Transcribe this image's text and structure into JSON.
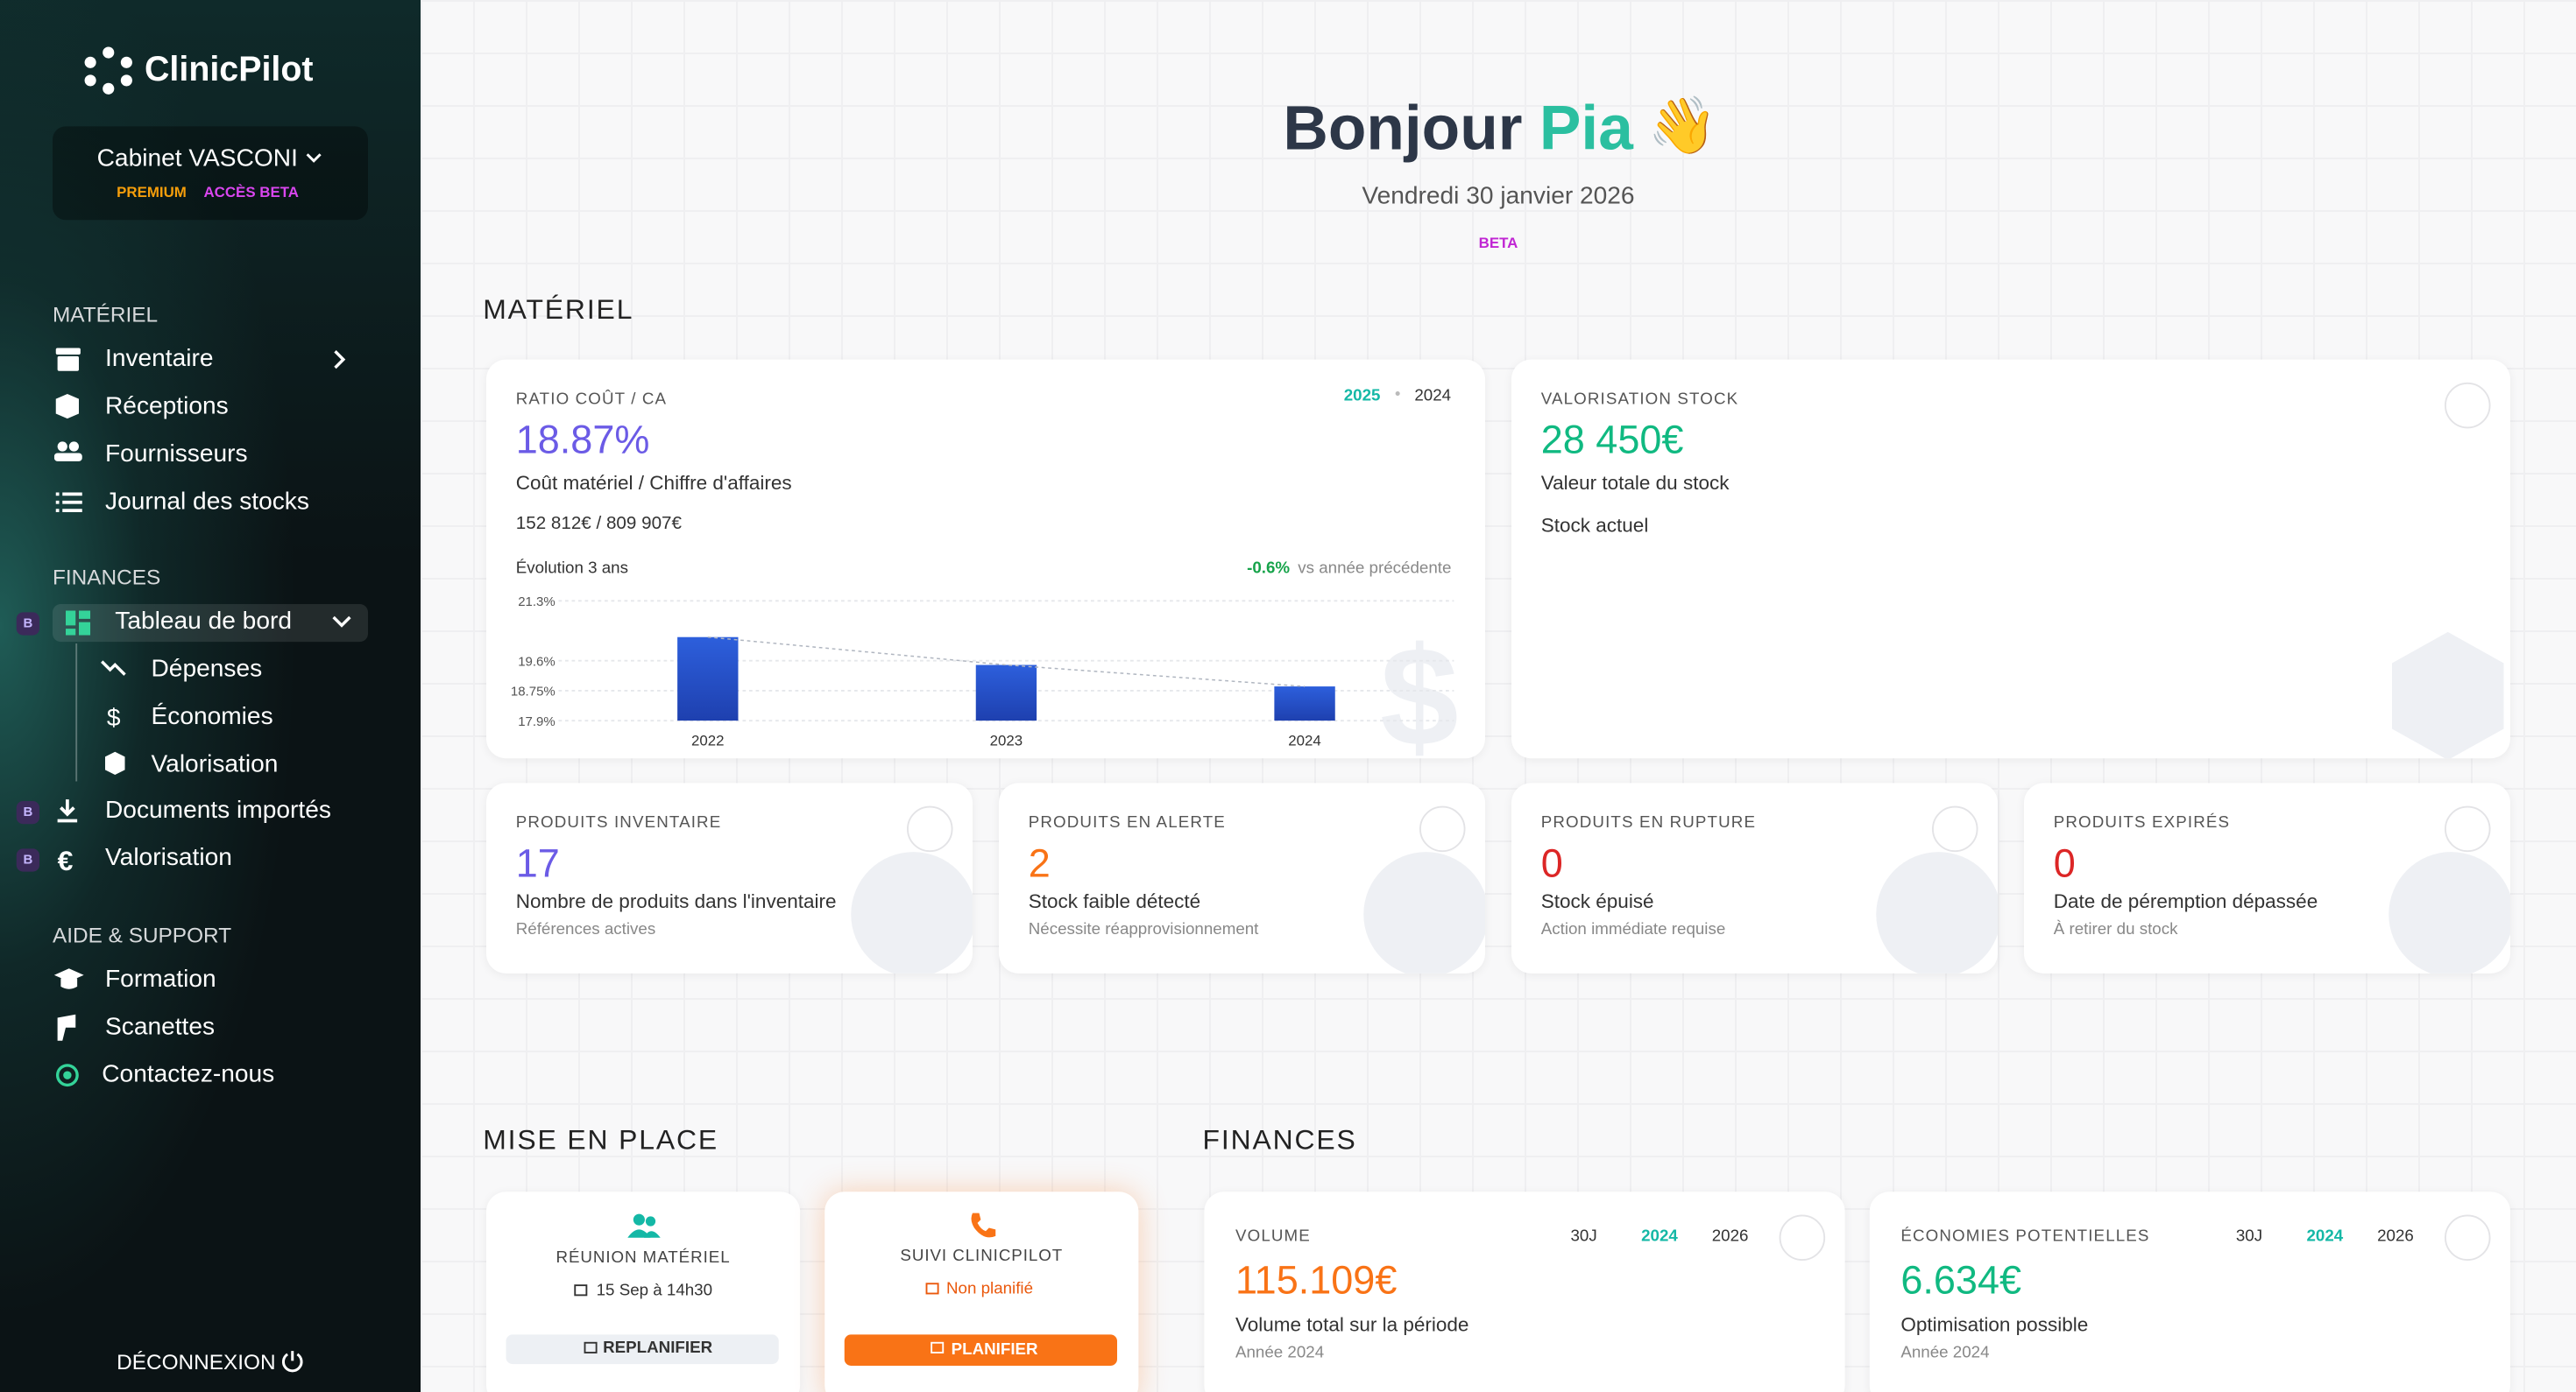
{
  "sidebar": {
    "brand": "ClinicPilot",
    "workspace": {
      "name": "Cabinet VASCONI",
      "badges": [
        "PREMIUM",
        "ACCÈS BETA"
      ]
    },
    "sections": [
      {
        "title": "MATÉRIEL",
        "items": [
          {
            "label": "Inventaire"
          },
          {
            "label": "Réceptions"
          },
          {
            "label": "Fournisseurs"
          },
          {
            "label": "Journal des stocks"
          }
        ]
      },
      {
        "title": "FINANCES",
        "items": [
          {
            "label": "Tableau de bord",
            "badge": "B",
            "children": [
              "Dépenses",
              "Économies",
              "Valorisation"
            ]
          },
          {
            "label": "Documents importés",
            "badge": "B"
          },
          {
            "label": "Valorisation",
            "badge": "B"
          }
        ]
      },
      {
        "title": "AIDE & SUPPORT",
        "items": [
          {
            "label": "Formation"
          },
          {
            "label": "Scanettes"
          },
          {
            "label": "Contactez-nous"
          }
        ]
      }
    ],
    "logout": "DÉCONNEXION"
  },
  "header": {
    "greeting": "Bonjour",
    "name": "Pia",
    "emoji": "👋",
    "date": "Vendredi 30 janvier 2026",
    "badge": "BETA"
  },
  "materiel": {
    "title": "MATÉRIEL",
    "ratio_card": {
      "label": "RATIO COÛT / CA",
      "years": [
        "2025",
        "2024"
      ],
      "value": "18.87%",
      "description": "Coût matériel / Chiffre d'affaires",
      "detail": "152 812€ / 809 907€",
      "evolution": "Évolution 3 ans",
      "delta": "-0.6%",
      "delta_text": "vs année précédente"
    },
    "stock_card": {
      "label": "VALORISATION STOCK",
      "value": "28 450€",
      "description": "Valeur totale du stock",
      "detail": "Stock actuel"
    },
    "kpis": [
      {
        "label": "PRODUITS INVENTAIRE",
        "value": "17",
        "description": "Nombre de produits dans l'inventaire",
        "sub": "Références actives"
      },
      {
        "label": "PRODUITS EN ALERTE",
        "value": "2",
        "description": "Stock faible détecté",
        "sub": "Nécessite réapprovisionnement"
      },
      {
        "label": "PRODUITS EN RUPTURE",
        "value": "0",
        "description": "Stock épuisé",
        "sub": "Action immédiate requise"
      },
      {
        "label": "PRODUITS EXPIRÉS",
        "value": "0",
        "description": "Date de péremption dépassée",
        "sub": "À retirer du stock"
      }
    ]
  },
  "chart_data": {
    "type": "bar",
    "categories": [
      "2022",
      "2023",
      "2024"
    ],
    "values": [
      20.27,
      19.48,
      18.87
    ],
    "color": "#2d5fdc",
    "ylim": [
      17.9,
      21.3
    ],
    "yticks": [
      {
        "value": 21.3,
        "label": "21.3%"
      },
      {
        "value": 19.6,
        "label": "19.6%"
      },
      {
        "value": 18.75,
        "label": "18.75%"
      },
      {
        "value": 17.9,
        "label": "17.9%"
      }
    ],
    "grid": true
  },
  "setup": {
    "title": "MISE EN PLACE",
    "cards": [
      {
        "title": "RÉUNION MATÉRIEL",
        "status": "15 Sep à 14h30",
        "action": "REPLANIFIER"
      },
      {
        "title": "SUIVI CLINICPILOT",
        "status": "Non planifié",
        "action": "PLANIFIER"
      }
    ]
  },
  "finances": {
    "title": "FINANCES",
    "cards": [
      {
        "label": "VOLUME",
        "periods": [
          "30J",
          "2024",
          "2026"
        ],
        "value": "115.109€",
        "description": "Volume total sur la période",
        "sub": "Année 2024"
      },
      {
        "label": "ÉCONOMIES POTENTIELLES",
        "periods": [
          "30J",
          "2024",
          "2026"
        ],
        "value": "6.634€",
        "description": "Optimisation possible",
        "sub": "Année 2024"
      }
    ]
  }
}
